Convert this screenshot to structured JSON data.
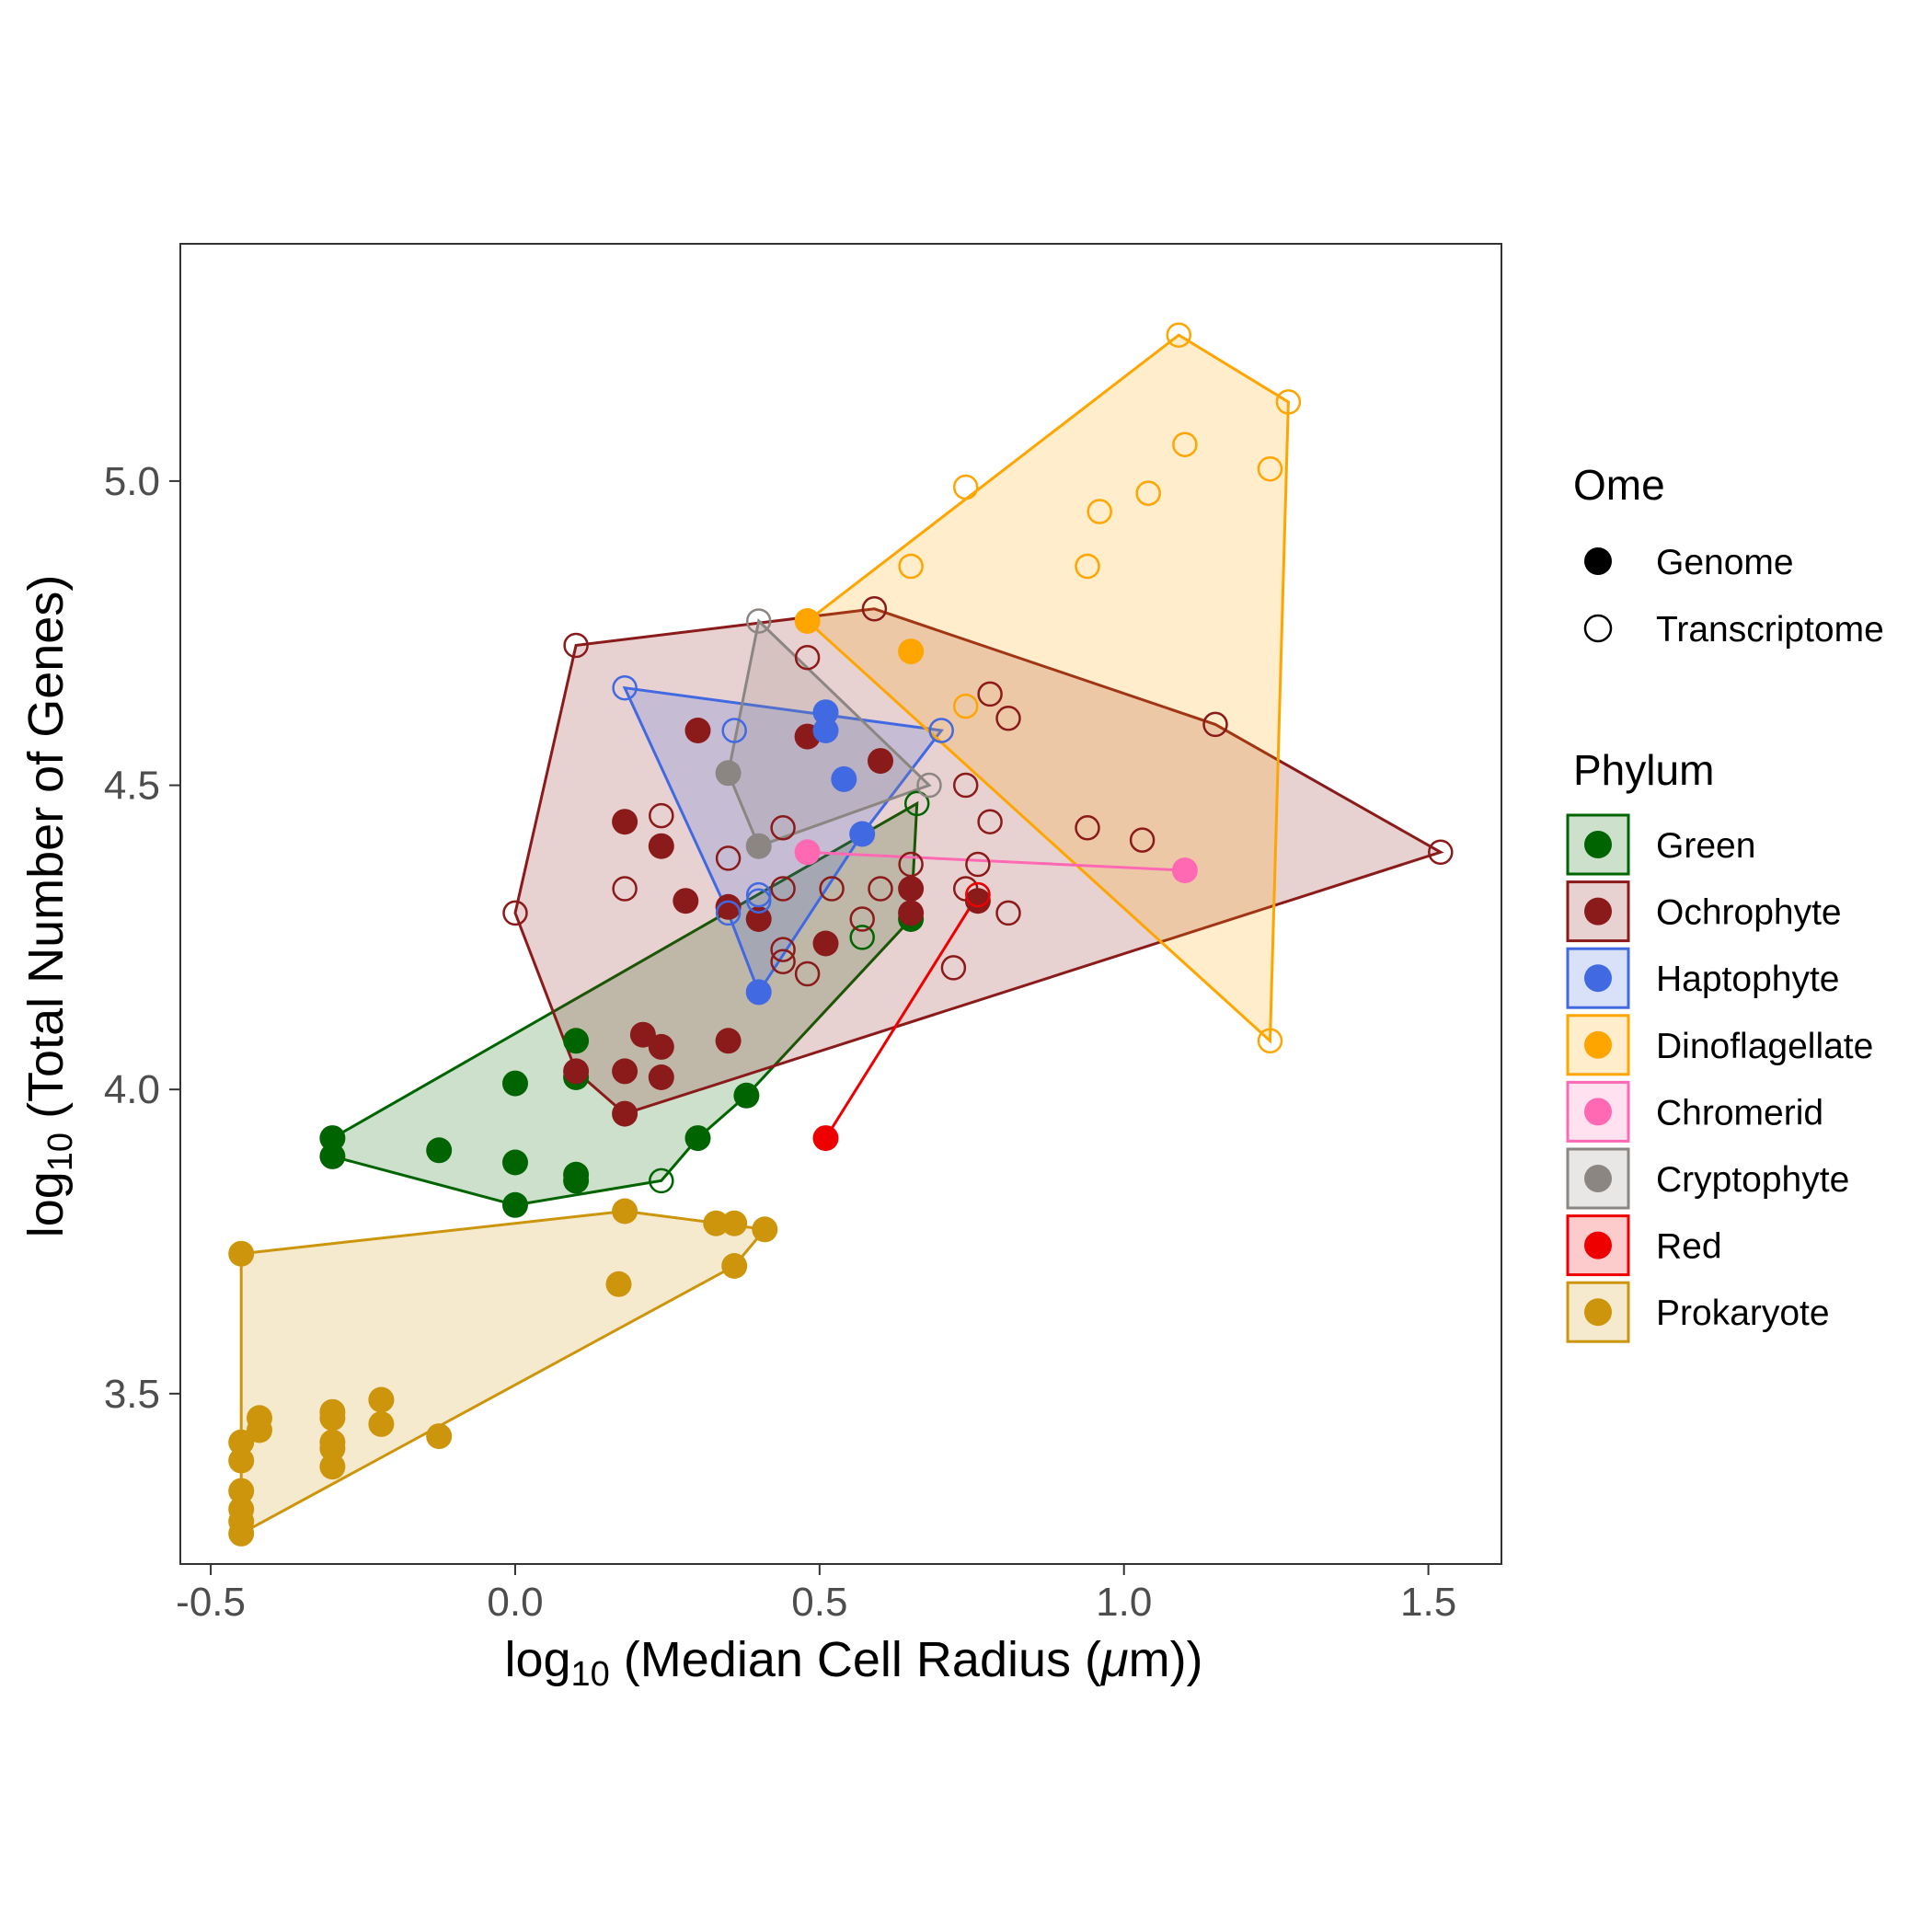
{
  "chart_data": {
    "type": "scatter",
    "xlabel": {
      "prefix": "log",
      "sub": "10",
      "rest": " (Median Cell Radius (",
      "mu": "μ",
      "unit": "m))"
    },
    "ylabel": {
      "prefix": "log",
      "sub": "10",
      "rest": " (Total Number of Genes)"
    },
    "xlim": [
      -0.55,
      1.62
    ],
    "ylim": [
      3.22,
      5.39
    ],
    "xticks": [
      -0.5,
      0.0,
      0.5,
      1.0,
      1.5
    ],
    "xtick_labels": [
      "-0.5",
      "0.0",
      "0.5",
      "1.0",
      "1.5"
    ],
    "yticks": [
      3.5,
      4.0,
      4.5,
      5.0
    ],
    "ytick_labels": [
      "3.5",
      "4.0",
      "4.5",
      "5.0"
    ],
    "grid": false,
    "legend_placement": "right",
    "legend_ome": {
      "title": "Ome",
      "entries": [
        {
          "label": "Genome",
          "filled": true
        },
        {
          "label": "Transcriptome",
          "filled": false
        }
      ]
    },
    "legend_phylum_title": "Phylum",
    "series": [
      {
        "name": "Green",
        "color": "#006400",
        "hull": [
          [
            -0.3,
            3.92
          ],
          [
            0.66,
            4.47
          ],
          [
            0.65,
            4.28
          ],
          [
            0.38,
            3.99
          ],
          [
            0.3,
            3.92
          ],
          [
            0.24,
            3.85
          ],
          [
            0.0,
            3.81
          ],
          [
            -0.3,
            3.89
          ]
        ],
        "genome": [
          [
            -0.3,
            3.92
          ],
          [
            -0.3,
            3.89
          ],
          [
            -0.125,
            3.9
          ],
          [
            0.0,
            4.01
          ],
          [
            0.0,
            3.88
          ],
          [
            0.0,
            3.81
          ],
          [
            0.1,
            4.08
          ],
          [
            0.1,
            4.02
          ],
          [
            0.1,
            3.86
          ],
          [
            0.1,
            3.85
          ],
          [
            0.3,
            3.92
          ],
          [
            0.38,
            3.99
          ],
          [
            0.65,
            4.28
          ]
        ],
        "transcriptome": [
          [
            0.24,
            3.85
          ],
          [
            0.57,
            4.25
          ],
          [
            0.66,
            4.47
          ]
        ]
      },
      {
        "name": "Ochrophyte",
        "color": "#8B1A1A",
        "hull": [
          [
            0.1,
            4.73
          ],
          [
            0.59,
            4.79
          ],
          [
            1.15,
            4.6
          ],
          [
            1.52,
            4.39
          ],
          [
            0.18,
            3.96
          ],
          [
            0.1,
            4.03
          ],
          [
            0.0,
            4.29
          ]
        ],
        "genome": [
          [
            0.1,
            4.03
          ],
          [
            0.18,
            4.44
          ],
          [
            0.18,
            4.03
          ],
          [
            0.18,
            3.96
          ],
          [
            0.21,
            4.09
          ],
          [
            0.24,
            4.4
          ],
          [
            0.24,
            4.07
          ],
          [
            0.24,
            4.02
          ],
          [
            0.28,
            4.31
          ],
          [
            0.3,
            4.59
          ],
          [
            0.35,
            4.3
          ],
          [
            0.35,
            4.08
          ],
          [
            0.4,
            4.28
          ],
          [
            0.48,
            4.58
          ],
          [
            0.51,
            4.24
          ],
          [
            0.6,
            4.54
          ],
          [
            0.65,
            4.33
          ],
          [
            0.65,
            4.29
          ],
          [
            0.76,
            4.31
          ]
        ],
        "transcriptome": [
          [
            0.0,
            4.29
          ],
          [
            0.1,
            4.73
          ],
          [
            0.18,
            4.33
          ],
          [
            0.24,
            4.45
          ],
          [
            0.35,
            4.38
          ],
          [
            0.44,
            4.43
          ],
          [
            0.44,
            4.33
          ],
          [
            0.44,
            4.23
          ],
          [
            0.44,
            4.21
          ],
          [
            0.48,
            4.71
          ],
          [
            0.48,
            4.19
          ],
          [
            0.52,
            4.33
          ],
          [
            0.57,
            4.28
          ],
          [
            0.59,
            4.79
          ],
          [
            0.6,
            4.33
          ],
          [
            0.65,
            4.37
          ],
          [
            0.72,
            4.2
          ],
          [
            0.74,
            4.5
          ],
          [
            0.74,
            4.33
          ],
          [
            0.76,
            4.37
          ],
          [
            0.76,
            4.32
          ],
          [
            0.78,
            4.65
          ],
          [
            0.78,
            4.44
          ],
          [
            0.81,
            4.61
          ],
          [
            0.81,
            4.29
          ],
          [
            0.94,
            4.43
          ],
          [
            1.03,
            4.41
          ],
          [
            1.15,
            4.6
          ],
          [
            1.52,
            4.39
          ]
        ]
      },
      {
        "name": "Haptophyte",
        "color": "#4169E1",
        "hull": [
          [
            0.18,
            4.66
          ],
          [
            0.7,
            4.59
          ],
          [
            0.57,
            4.42
          ],
          [
            0.4,
            4.16
          ],
          [
            0.35,
            4.29
          ]
        ],
        "genome": [
          [
            0.4,
            4.16
          ],
          [
            0.51,
            4.62
          ],
          [
            0.51,
            4.59
          ],
          [
            0.54,
            4.51
          ],
          [
            0.57,
            4.42
          ]
        ],
        "transcriptome": [
          [
            0.18,
            4.66
          ],
          [
            0.36,
            4.59
          ],
          [
            0.35,
            4.29
          ],
          [
            0.4,
            4.32
          ],
          [
            0.4,
            4.31
          ],
          [
            0.7,
            4.59
          ]
        ]
      },
      {
        "name": "Dinoflagellate",
        "color": "#FFA500",
        "hull": [
          [
            0.48,
            4.77
          ],
          [
            1.09,
            5.24
          ],
          [
            1.27,
            5.13
          ],
          [
            1.24,
            4.08
          ]
        ],
        "genome": [
          [
            0.48,
            4.77
          ],
          [
            0.65,
            4.72
          ]
        ],
        "transcriptome": [
          [
            0.65,
            4.86
          ],
          [
            0.74,
            4.99
          ],
          [
            0.74,
            4.63
          ],
          [
            0.94,
            4.86
          ],
          [
            0.96,
            4.95
          ],
          [
            1.04,
            4.98
          ],
          [
            1.09,
            5.24
          ],
          [
            1.1,
            5.06
          ],
          [
            1.24,
            5.02
          ],
          [
            1.27,
            5.13
          ],
          [
            1.24,
            4.08
          ]
        ]
      },
      {
        "name": "Chromerid",
        "color": "#FF69B4",
        "hull": [
          [
            0.48,
            4.39
          ],
          [
            1.1,
            4.36
          ]
        ],
        "genome": [
          [
            0.48,
            4.39
          ],
          [
            1.1,
            4.36
          ]
        ],
        "transcriptome": []
      },
      {
        "name": "Cryptophyte",
        "color": "#8B8682",
        "hull": [
          [
            0.4,
            4.77
          ],
          [
            0.68,
            4.5
          ],
          [
            0.4,
            4.4
          ],
          [
            0.35,
            4.52
          ]
        ],
        "genome": [
          [
            0.35,
            4.52
          ],
          [
            0.4,
            4.4
          ]
        ],
        "transcriptome": [
          [
            0.4,
            4.77
          ],
          [
            0.68,
            4.5
          ]
        ]
      },
      {
        "name": "Red",
        "color": "#EE0000",
        "hull": [
          [
            0.51,
            3.92
          ],
          [
            0.76,
            4.32
          ]
        ],
        "genome": [
          [
            0.51,
            3.92
          ]
        ],
        "transcriptome": [
          [
            0.76,
            4.32
          ]
        ]
      },
      {
        "name": "Prokaryote",
        "color": "#CD950C",
        "hull": [
          [
            -0.45,
            3.73
          ],
          [
            0.18,
            3.8
          ],
          [
            0.41,
            3.77
          ],
          [
            0.36,
            3.71
          ],
          [
            -0.45,
            3.27
          ]
        ],
        "genome": [
          [
            -0.45,
            3.73
          ],
          [
            -0.45,
            3.42
          ],
          [
            -0.45,
            3.39
          ],
          [
            -0.45,
            3.34
          ],
          [
            -0.45,
            3.31
          ],
          [
            -0.45,
            3.29
          ],
          [
            -0.45,
            3.27
          ],
          [
            -0.42,
            3.46
          ],
          [
            -0.42,
            3.44
          ],
          [
            -0.3,
            3.47
          ],
          [
            -0.3,
            3.46
          ],
          [
            -0.3,
            3.42
          ],
          [
            -0.3,
            3.41
          ],
          [
            -0.3,
            3.38
          ],
          [
            -0.22,
            3.49
          ],
          [
            -0.22,
            3.45
          ],
          [
            -0.125,
            3.43
          ],
          [
            0.17,
            3.68
          ],
          [
            0.18,
            3.8
          ],
          [
            0.33,
            3.78
          ],
          [
            0.36,
            3.78
          ],
          [
            0.36,
            3.71
          ],
          [
            0.41,
            3.77
          ]
        ],
        "transcriptome": []
      }
    ]
  }
}
